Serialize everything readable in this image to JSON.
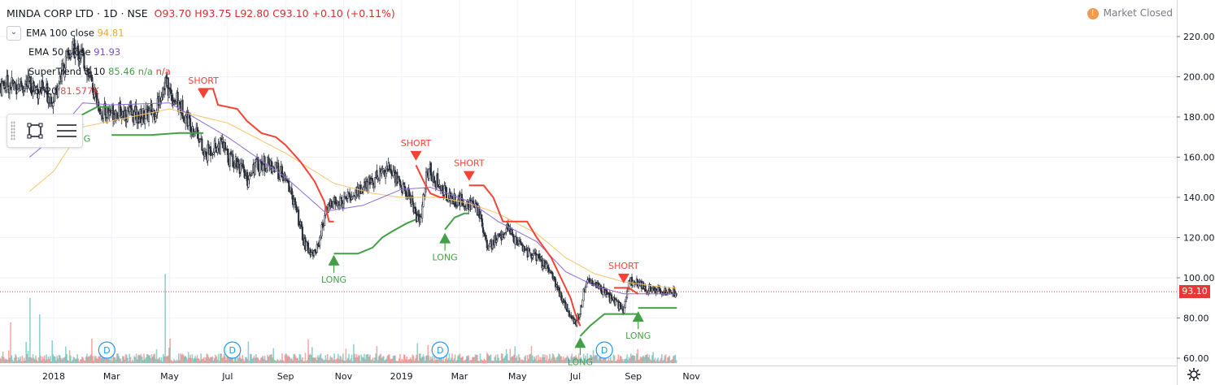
{
  "header": {
    "symbol": "MINDA CORP LTD · 1D · NSE",
    "ohlc": "O93.70 H93.75 L92.80 C93.10 +0.10 (+0.11%)"
  },
  "legend": {
    "ema100_label": "EMA 100 close",
    "ema100_value": "94.81",
    "ema50_label": "EMA 50 close",
    "ema50_value": "91.93",
    "st_label": "SuperTrend 3 10",
    "st_value": "85.46",
    "st_na1": "n/a",
    "st_na2": "n/a",
    "vol_label": "Vol 20",
    "vol_value": "81.577K"
  },
  "status": {
    "market": "Market Closed",
    "warn_icon": "!"
  },
  "last_price": "93.10",
  "chart_data": {
    "type": "candlestick",
    "symbol": "MINDA CORP LTD",
    "interval": "1D",
    "exchange": "NSE",
    "y_ticks": [
      60,
      80,
      100,
      120,
      140,
      160,
      180,
      200,
      220
    ],
    "ylim": [
      56,
      232
    ],
    "x_ticks": [
      "2018",
      "Mar",
      "May",
      "Jul",
      "Sep",
      "Nov",
      "2019",
      "Mar",
      "May",
      "Jul",
      "Sep",
      "Nov"
    ],
    "x_tick_index": [
      0,
      12,
      24,
      36,
      48,
      60,
      72,
      84,
      96,
      108,
      120,
      132
    ],
    "close_anchors": [
      [
        -5,
        196
      ],
      [
        0,
        190
      ],
      [
        2,
        205
      ],
      [
        4,
        214
      ],
      [
        6,
        210
      ],
      [
        8,
        195
      ],
      [
        10,
        182
      ],
      [
        12,
        183
      ],
      [
        15,
        182
      ],
      [
        18,
        180
      ],
      [
        21,
        183
      ],
      [
        23,
        198
      ],
      [
        24,
        192
      ],
      [
        26,
        186
      ],
      [
        28,
        178
      ],
      [
        30,
        172
      ],
      [
        31,
        160
      ],
      [
        33,
        165
      ],
      [
        35,
        166
      ],
      [
        36,
        160
      ],
      [
        38,
        158
      ],
      [
        40,
        148
      ],
      [
        41,
        155
      ],
      [
        43,
        157
      ],
      [
        45,
        156
      ],
      [
        47,
        152
      ],
      [
        49,
        144
      ],
      [
        51,
        126
      ],
      [
        52,
        116
      ],
      [
        54,
        112
      ],
      [
        55,
        119
      ],
      [
        56,
        130
      ],
      [
        57,
        137
      ],
      [
        59,
        137
      ],
      [
        61,
        140
      ],
      [
        63,
        143
      ],
      [
        65,
        146
      ],
      [
        67,
        151
      ],
      [
        69,
        155
      ],
      [
        71,
        150
      ],
      [
        72,
        145
      ],
      [
        74,
        140
      ],
      [
        75,
        130
      ],
      [
        76,
        128
      ],
      [
        77,
        150
      ],
      [
        78,
        153
      ],
      [
        80,
        145
      ],
      [
        82,
        140
      ],
      [
        84,
        138
      ],
      [
        86,
        137
      ],
      [
        88,
        133
      ],
      [
        89,
        124
      ],
      [
        90,
        115
      ],
      [
        92,
        120
      ],
      [
        94,
        124
      ],
      [
        96,
        118
      ],
      [
        98,
        113
      ],
      [
        100,
        110
      ],
      [
        102,
        105
      ],
      [
        104,
        97
      ],
      [
        105,
        90
      ],
      [
        106,
        86
      ],
      [
        107,
        80
      ],
      [
        108,
        78
      ],
      [
        109,
        83
      ],
      [
        110,
        97
      ],
      [
        112,
        98
      ],
      [
        114,
        93
      ],
      [
        116,
        88
      ],
      [
        118,
        84
      ],
      [
        119,
        97
      ],
      [
        120,
        99
      ],
      [
        122,
        96
      ],
      [
        124,
        94
      ],
      [
        126,
        93
      ],
      [
        128,
        92
      ],
      [
        129,
        93.1
      ]
    ],
    "ema100_anchors": [
      [
        -5,
        143
      ],
      [
        0,
        153
      ],
      [
        6,
        175
      ],
      [
        12,
        178
      ],
      [
        24,
        184
      ],
      [
        36,
        177
      ],
      [
        48,
        162
      ],
      [
        58,
        147
      ],
      [
        66,
        142
      ],
      [
        72,
        140
      ],
      [
        80,
        140
      ],
      [
        86,
        137
      ],
      [
        92,
        132
      ],
      [
        100,
        122
      ],
      [
        106,
        110
      ],
      [
        112,
        102
      ],
      [
        118,
        98
      ],
      [
        124,
        96
      ],
      [
        129,
        94.8
      ]
    ],
    "ema50_anchors": [
      [
        -5,
        160
      ],
      [
        0,
        170
      ],
      [
        6,
        187
      ],
      [
        12,
        186
      ],
      [
        24,
        187
      ],
      [
        36,
        170
      ],
      [
        48,
        150
      ],
      [
        56,
        133
      ],
      [
        64,
        136
      ],
      [
        72,
        144
      ],
      [
        78,
        145
      ],
      [
        86,
        138
      ],
      [
        92,
        128
      ],
      [
        100,
        118
      ],
      [
        106,
        103
      ],
      [
        112,
        96
      ],
      [
        118,
        92
      ],
      [
        124,
        92
      ],
      [
        129,
        91.9
      ]
    ],
    "supertrend_segments": [
      {
        "trend": "up",
        "points": [
          [
            -5,
            167
          ],
          [
            1,
            167
          ],
          [
            5,
            180
          ],
          [
            9,
            185
          ],
          [
            12,
            185
          ]
        ]
      },
      {
        "trend": "up",
        "points": [
          [
            12,
            171
          ],
          [
            20,
            171
          ],
          [
            26,
            172
          ],
          [
            31,
            172
          ]
        ]
      },
      {
        "trend": "down",
        "points": [
          [
            30,
            194
          ],
          [
            33,
            194
          ],
          [
            34,
            186
          ],
          [
            38,
            184
          ],
          [
            40,
            178
          ],
          [
            43,
            172
          ],
          [
            46,
            170
          ],
          [
            48,
            166
          ],
          [
            51,
            158
          ],
          [
            54,
            148
          ],
          [
            56,
            138
          ],
          [
            57,
            128
          ],
          [
            58,
            128
          ]
        ]
      },
      {
        "trend": "up",
        "points": [
          [
            58,
            112
          ],
          [
            63,
            112
          ],
          [
            66,
            115
          ],
          [
            68,
            120
          ],
          [
            70,
            123
          ],
          [
            73,
            127
          ],
          [
            75,
            129
          ]
        ]
      },
      {
        "trend": "down",
        "points": [
          [
            75,
            156
          ],
          [
            77,
            146
          ],
          [
            78,
            142
          ],
          [
            80,
            140
          ],
          [
            81,
            140
          ]
        ]
      },
      {
        "trend": "up",
        "points": [
          [
            81,
            124
          ],
          [
            83,
            130
          ],
          [
            85,
            132
          ],
          [
            86,
            132
          ]
        ]
      },
      {
        "trend": "down",
        "points": [
          [
            86,
            146
          ],
          [
            89,
            146
          ],
          [
            91,
            140
          ],
          [
            93,
            128
          ],
          [
            98,
            128
          ],
          [
            100,
            120
          ],
          [
            103,
            110
          ],
          [
            105,
            100
          ],
          [
            107,
            90
          ],
          [
            108,
            82
          ],
          [
            109,
            76
          ]
        ]
      },
      {
        "trend": "up",
        "points": [
          [
            109,
            71
          ],
          [
            111,
            76
          ],
          [
            114,
            82
          ],
          [
            117,
            82
          ],
          [
            120,
            82
          ],
          [
            121,
            82
          ]
        ]
      },
      {
        "trend": "down",
        "points": [
          [
            116,
            95
          ],
          [
            119,
            95
          ],
          [
            121,
            92
          ]
        ]
      },
      {
        "trend": "up",
        "points": [
          [
            121,
            85
          ],
          [
            129,
            85
          ]
        ]
      }
    ],
    "signals": [
      {
        "type": "LONG",
        "index": 5,
        "price": 183
      },
      {
        "type": "SHORT",
        "index": 31,
        "price": 188
      },
      {
        "type": "LONG",
        "index": 58,
        "price": 113
      },
      {
        "type": "SHORT",
        "index": 75,
        "price": 157
      },
      {
        "type": "LONG",
        "index": 81,
        "price": 124
      },
      {
        "type": "SHORT",
        "index": 86,
        "price": 147
      },
      {
        "type": "LONG",
        "index": 109,
        "price": 72
      },
      {
        "type": "SHORT",
        "index": 118,
        "price": 96
      },
      {
        "type": "LONG",
        "index": 121,
        "price": 85
      }
    ],
    "dividend_markers": [
      {
        "index": 11,
        "label": "D"
      },
      {
        "index": 37,
        "label": "D"
      },
      {
        "index": 80,
        "label": "D"
      },
      {
        "index": 114,
        "label": "D"
      }
    ],
    "colors": {
      "up": "#26a69a",
      "down": "#ef5350",
      "ema100": "#f7c46c",
      "ema50": "#8e6bd6",
      "st_up": "#43a047",
      "st_down": "#f44336",
      "short": "#f44336",
      "long": "#43a047"
    }
  }
}
